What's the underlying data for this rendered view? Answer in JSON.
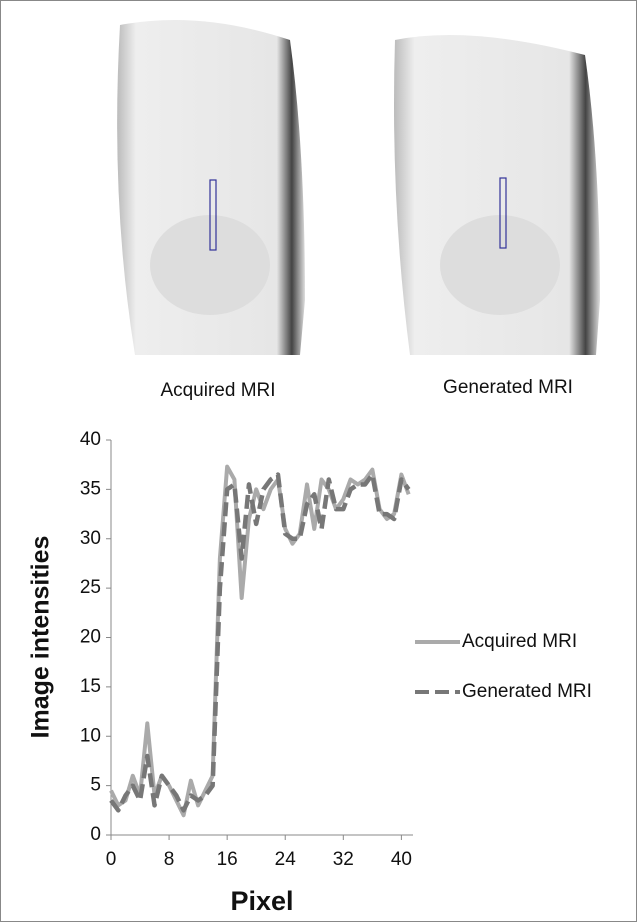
{
  "images": [
    {
      "caption": "Acquired MRI"
    },
    {
      "caption": "Generated MRI"
    }
  ],
  "chart_data": {
    "type": "line",
    "ylabel": "Image intensities",
    "xlabel": "Pixel",
    "x": [
      0,
      1,
      2,
      3,
      4,
      5,
      6,
      7,
      8,
      9,
      10,
      11,
      12,
      13,
      14,
      15,
      16,
      17,
      18,
      19,
      20,
      21,
      22,
      23,
      24,
      25,
      26,
      27,
      28,
      29,
      30,
      31,
      32,
      33,
      34,
      35,
      36,
      37,
      38,
      39,
      40,
      41
    ],
    "series": [
      {
        "name": "Acquired MRI",
        "color": "#aaaaaa",
        "style": "solid",
        "values": [
          4.5,
          3,
          3.5,
          6,
          4,
          11.3,
          4,
          6,
          5,
          3.5,
          2,
          5.5,
          3,
          4.5,
          6,
          28,
          37.3,
          36,
          24,
          32,
          35,
          33,
          35,
          36,
          31,
          29.5,
          30.5,
          35.5,
          31,
          36,
          35,
          33,
          34,
          36,
          35.5,
          36,
          37,
          33,
          32,
          32.5,
          36.5,
          34.5
        ]
      },
      {
        "name": "Generated MRI",
        "color": "#777777",
        "style": "dashed",
        "values": [
          3.5,
          2.5,
          4,
          5,
          3.5,
          8,
          3,
          6,
          5,
          4,
          2.5,
          4,
          3.5,
          4,
          5,
          25,
          35,
          35.5,
          28,
          35.5,
          31.5,
          35,
          36,
          36.5,
          30.5,
          30,
          30,
          33.5,
          34.5,
          31,
          36,
          33,
          33,
          35,
          35.5,
          35.5,
          36.5,
          32.5,
          32.5,
          32,
          36,
          35
        ]
      }
    ],
    "xlim": [
      0,
      41.6
    ],
    "xticks": [
      0,
      8,
      16,
      24,
      32,
      40
    ],
    "ylim": [
      0,
      40
    ],
    "yticks": [
      0,
      5,
      10,
      15,
      20,
      25,
      30,
      35,
      40
    ],
    "legend": "right"
  }
}
